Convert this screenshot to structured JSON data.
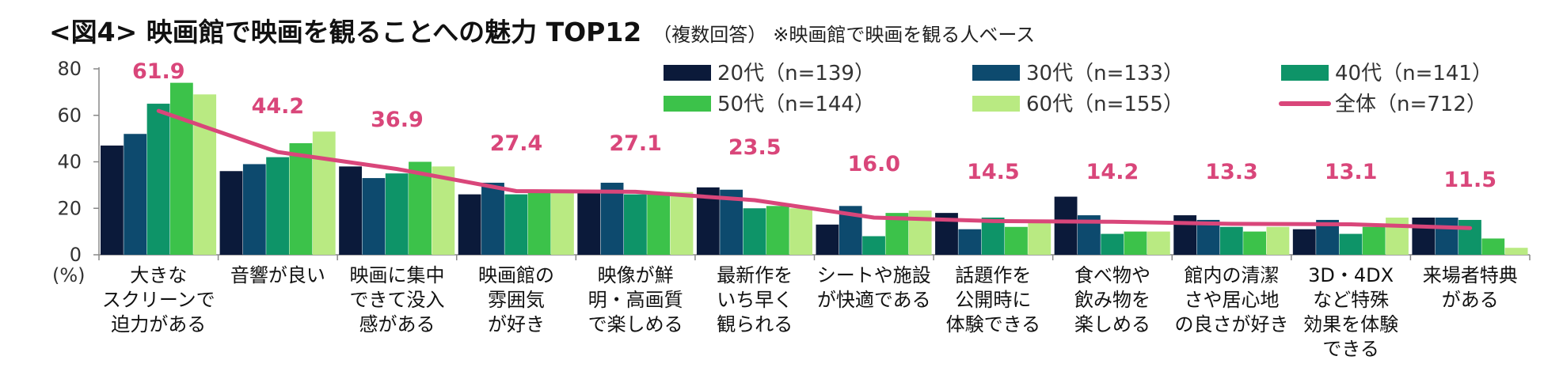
{
  "title": {
    "main": "<図4> 映画館で映画を観ることへの魅力 TOP12",
    "sub": "（複数回答）",
    "note": "※映画館で映画を観る人ベース"
  },
  "chart_data": {
    "type": "bar",
    "unit_label": "(%)",
    "ylim": [
      0,
      80
    ],
    "yticks": [
      0,
      20,
      40,
      60,
      80
    ],
    "legend_position": "top-right",
    "categories": [
      [
        "大きな",
        "スクリーンで",
        "迫力がある"
      ],
      [
        "音響が良い"
      ],
      [
        "映画に集中",
        "できて没入",
        "感がある"
      ],
      [
        "映画館の",
        "雰囲気",
        "が好き"
      ],
      [
        "映像が鮮",
        "明・高画質",
        "で楽しめる"
      ],
      [
        "最新作を",
        "いち早く",
        "観られる"
      ],
      [
        "シートや施設",
        "が快適である"
      ],
      [
        "話題作を",
        "公開時に",
        "体験できる"
      ],
      [
        "食べ物や",
        "飲み物を",
        "楽しめる"
      ],
      [
        "館内の清潔",
        "さや居心地",
        "の良さが好き"
      ],
      [
        "3D・4DX",
        "など特殊",
        "効果を体験",
        "できる"
      ],
      [
        "来場者特典",
        "がある"
      ]
    ],
    "series": [
      {
        "name": "20代（n=139）",
        "color": "#0b1a3a",
        "values": [
          47,
          36,
          38,
          26,
          27,
          29,
          13,
          18,
          25,
          17,
          11,
          16
        ]
      },
      {
        "name": "30代（n=133）",
        "color": "#0d4a6e",
        "values": [
          52,
          39,
          33,
          31,
          31,
          28,
          21,
          11,
          17,
          15,
          15,
          16
        ]
      },
      {
        "name": "40代（n=141）",
        "color": "#0e9468",
        "values": [
          65,
          42,
          35,
          26,
          26,
          20,
          8,
          16,
          9,
          12,
          9,
          15
        ]
      },
      {
        "name": "50代（n=144）",
        "color": "#3cc24a",
        "values": [
          74,
          48,
          40,
          27,
          27,
          21,
          18,
          12,
          10,
          10,
          12,
          7
        ]
      },
      {
        "name": "60代（n=155）",
        "color": "#b9ea82",
        "values": [
          69,
          53,
          38,
          27,
          27,
          20,
          19,
          14,
          10,
          12,
          16,
          3
        ]
      }
    ],
    "total_series": {
      "name": "全体（n=712）",
      "color": "#d9467a",
      "values": [
        61.9,
        44.2,
        36.9,
        27.4,
        27.1,
        23.5,
        16.0,
        14.5,
        14.2,
        13.3,
        13.1,
        11.5
      ],
      "labels": [
        "61.9",
        "44.2",
        "36.9",
        "27.4",
        "27.1",
        "23.5",
        "16.0",
        "14.5",
        "14.2",
        "13.3",
        "13.1",
        "11.5"
      ]
    }
  }
}
